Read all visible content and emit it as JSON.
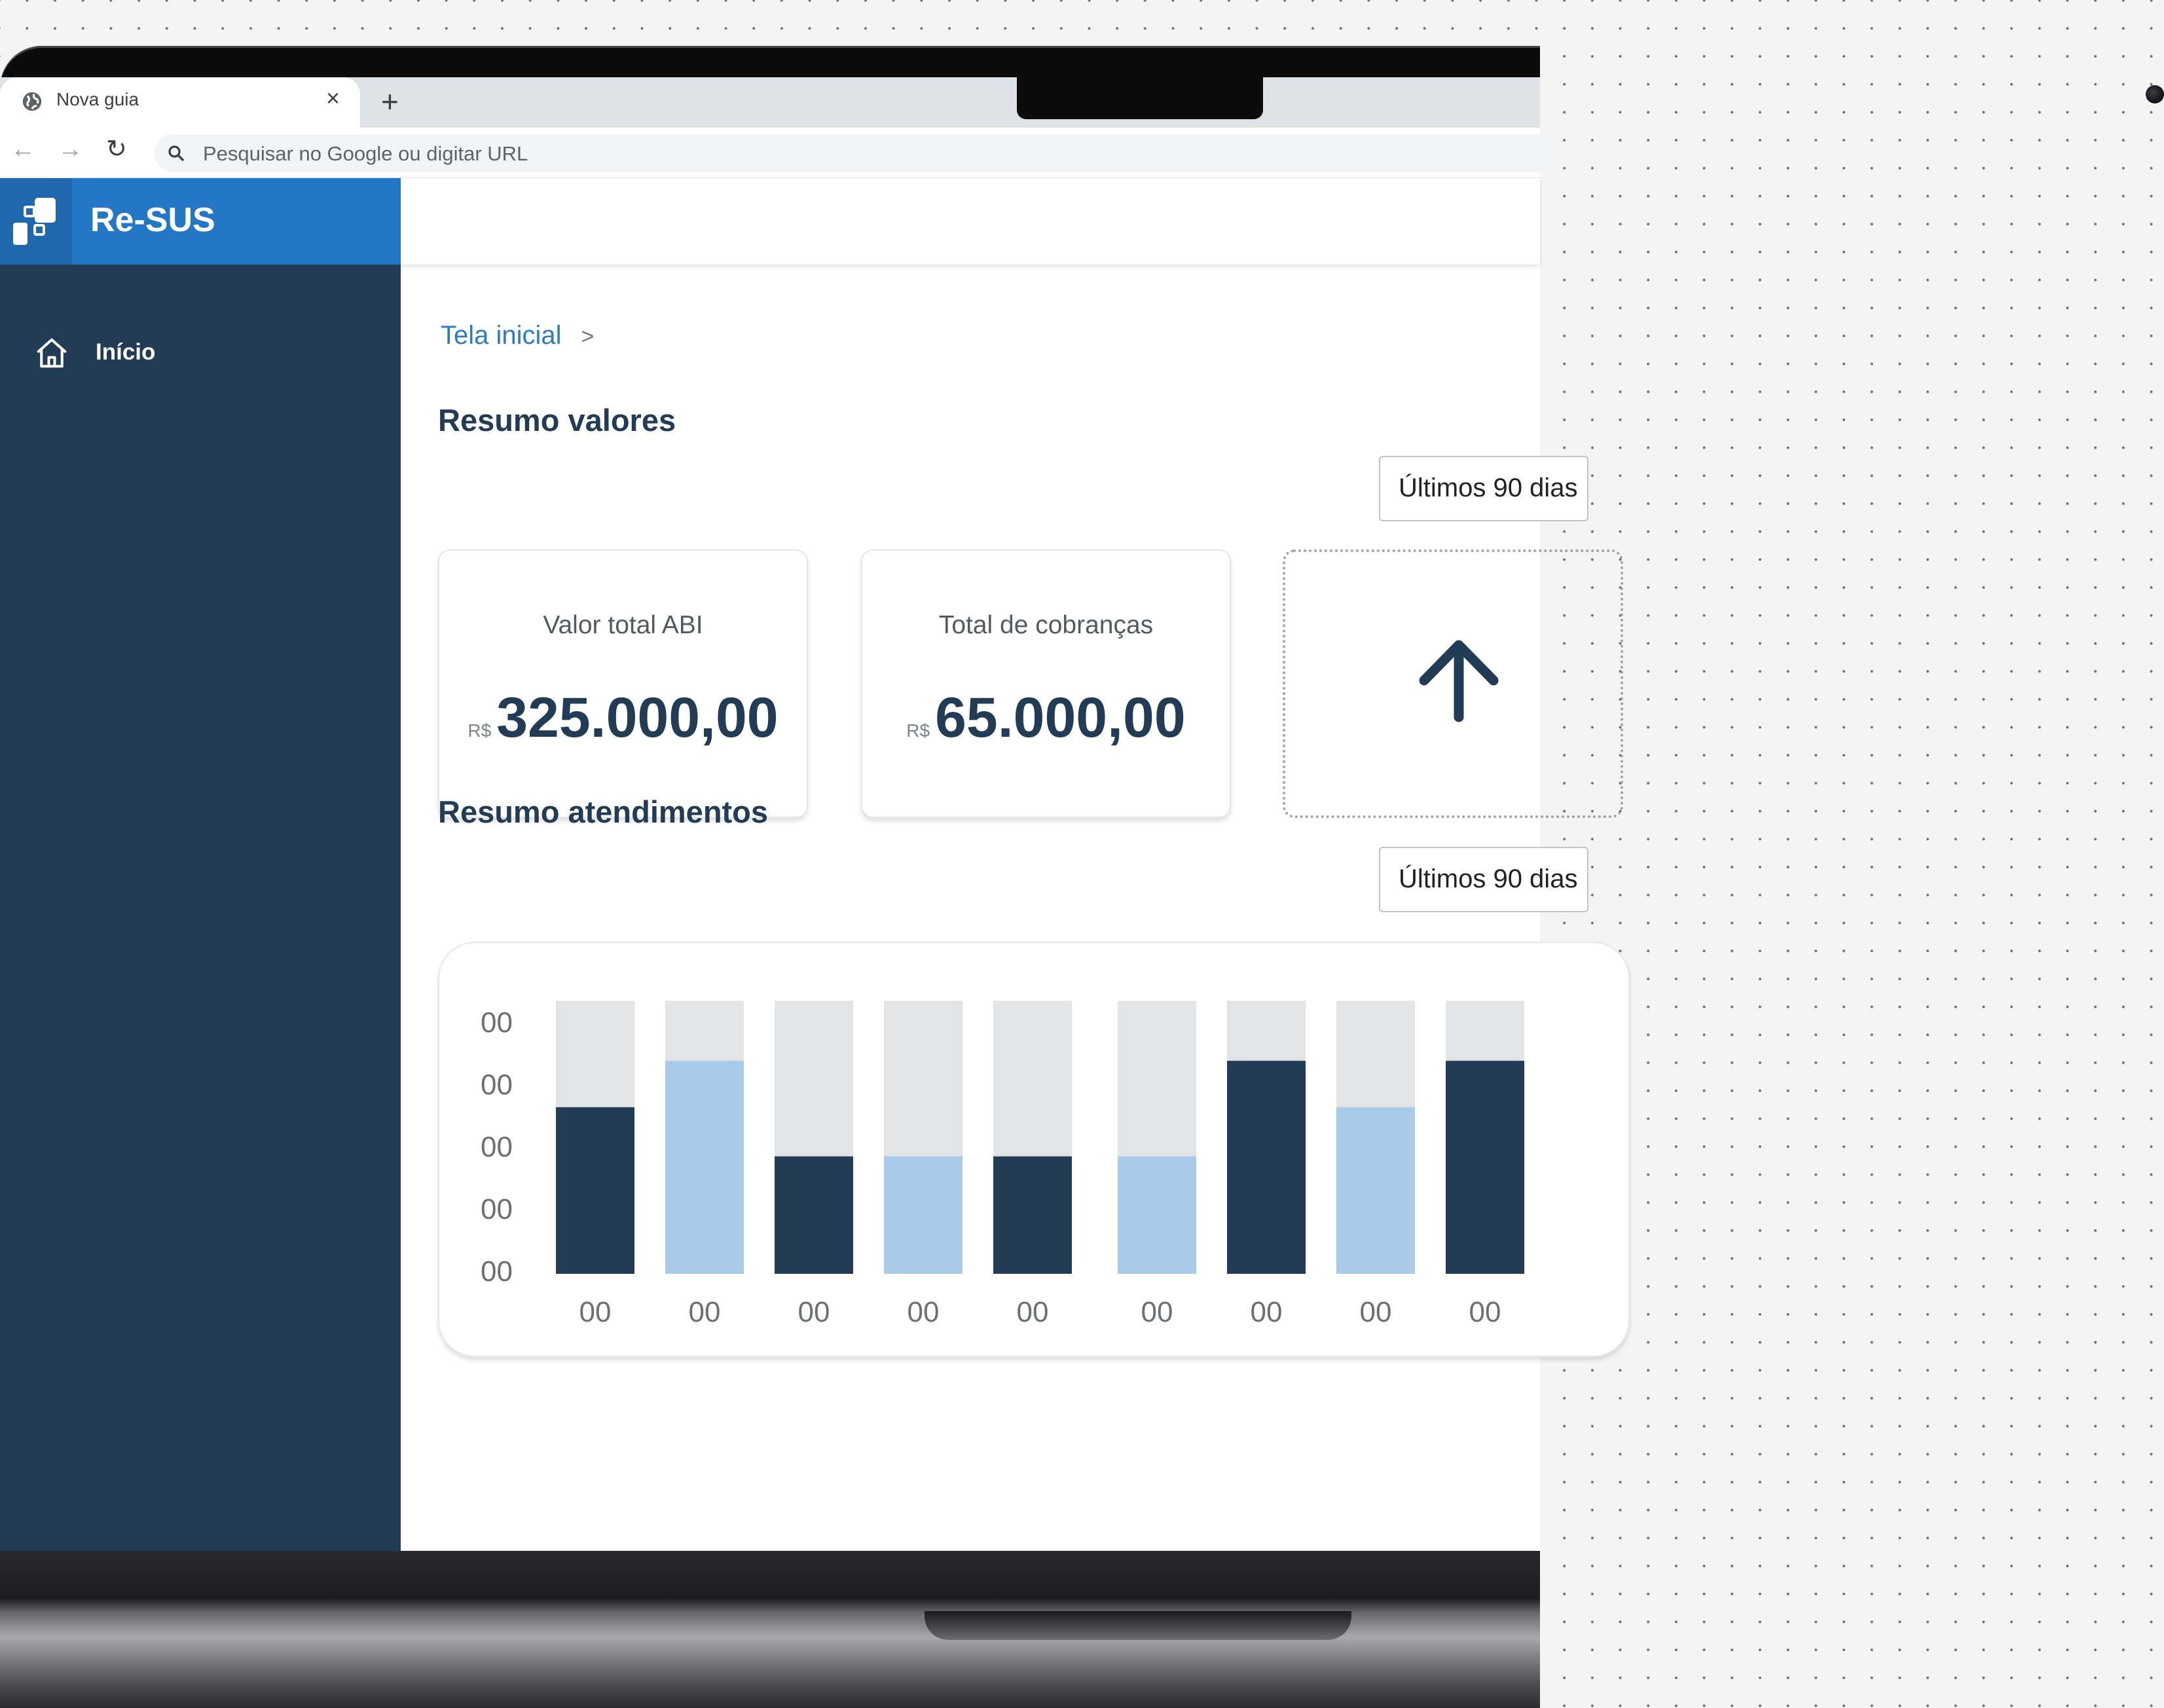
{
  "browser": {
    "tab_title": "Nova guia",
    "tab_close": "×",
    "new_tab": "+",
    "back": "←",
    "forward": "→",
    "reload": "↻",
    "omnibox_placeholder": "Pesquisar no Google ou digitar URL"
  },
  "app": {
    "name": "Re-SUS",
    "sidebar": {
      "items": [
        {
          "label": "Início",
          "icon": "home-icon"
        }
      ]
    },
    "breadcrumb": {
      "items": [
        "Tela inicial"
      ],
      "separator": ">"
    }
  },
  "resumo_valores": {
    "title": "Resumo valores",
    "period": "Últimos 90 dias",
    "cards": [
      {
        "label": "Valor total ABI",
        "currency": "R$",
        "amount": "325.000,00"
      },
      {
        "label": "Total de cobranças",
        "currency": "R$",
        "amount": "65.000,00"
      }
    ],
    "upload_icon": "arrow-up-icon"
  },
  "resumo_atendimentos": {
    "title": "Resumo atendimentos",
    "period": "Últimos 90 dias"
  },
  "colors": {
    "sidebar": "#223c56",
    "brand": "#2477c5",
    "bar_dark": "#223c56",
    "bar_light": "#a9cbea",
    "bar_track": "#e3e4e5",
    "link": "#2f7cc2"
  },
  "chart_data": {
    "type": "bar",
    "title": "",
    "xlabel": "",
    "ylabel": "",
    "ylim": [
      0,
      1
    ],
    "y_ticks": [
      "00",
      "00",
      "00",
      "00",
      "00"
    ],
    "categories": [
      "00",
      "00",
      "00",
      "00",
      "00",
      "00",
      "00",
      "00",
      "00"
    ],
    "values": [
      0.61,
      0.78,
      0.43,
      0.43,
      0.43,
      0.43,
      0.78,
      0.61,
      0.78
    ],
    "bar_colors": [
      "dark",
      "light",
      "dark",
      "light",
      "dark",
      "light",
      "dark",
      "light",
      "dark"
    ],
    "grid": false,
    "legend": "none"
  }
}
